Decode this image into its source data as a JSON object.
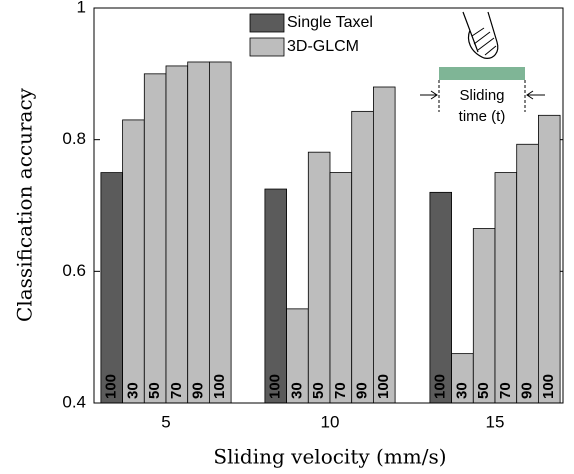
{
  "chart_data": {
    "type": "grouped-bar",
    "x_label": "Sliding velocity (mm/s)",
    "y_label": "Classification accuracy",
    "categories": [
      "5",
      "10",
      "15"
    ],
    "series": [
      {
        "name": "Single Taxel",
        "color": "#5b5b5b",
        "bar_labels": [
          "100"
        ],
        "values": [
          [
            0.75
          ],
          [
            0.725
          ],
          [
            0.72
          ]
        ]
      },
      {
        "name": "3D-GLCM",
        "color": "#bdbdbd",
        "bar_labels": [
          "30",
          "50",
          "70",
          "90",
          "100"
        ],
        "values": [
          [
            0.83,
            0.9,
            0.912,
            0.918,
            0.918
          ],
          [
            0.543,
            0.781,
            0.75,
            0.843,
            0.88
          ],
          [
            0.475,
            0.665,
            0.75,
            0.793,
            0.837
          ]
        ]
      }
    ],
    "ylim": [
      0.4,
      1
    ],
    "yticks": [
      0.4,
      0.6,
      0.8,
      1
    ],
    "inset_labels": [
      "Sliding",
      "time (t)"
    ]
  }
}
